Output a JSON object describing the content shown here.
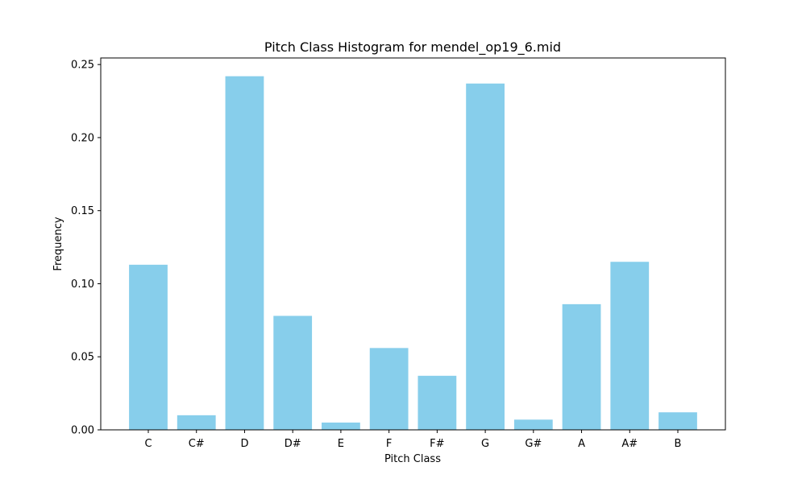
{
  "chart_data": {
    "type": "bar",
    "title": "Pitch Class Histogram for mendel_op19_6.mid",
    "xlabel": "Pitch Class",
    "ylabel": "Frequency",
    "categories": [
      "C",
      "C#",
      "D",
      "D#",
      "E",
      "F",
      "F#",
      "G",
      "G#",
      "A",
      "A#",
      "B"
    ],
    "values": [
      0.113,
      0.01,
      0.242,
      0.078,
      0.005,
      0.056,
      0.037,
      0.237,
      0.007,
      0.086,
      0.115,
      0.012
    ],
    "ylim": [
      0,
      0.2545
    ],
    "yticks": [
      0.0,
      0.05,
      0.1,
      0.15,
      0.2,
      0.25
    ],
    "ytick_labels": [
      "0.00",
      "0.05",
      "0.10",
      "0.15",
      "0.20",
      "0.25"
    ],
    "bar_color": "#87ceeb",
    "grid": false,
    "legend": "none"
  }
}
